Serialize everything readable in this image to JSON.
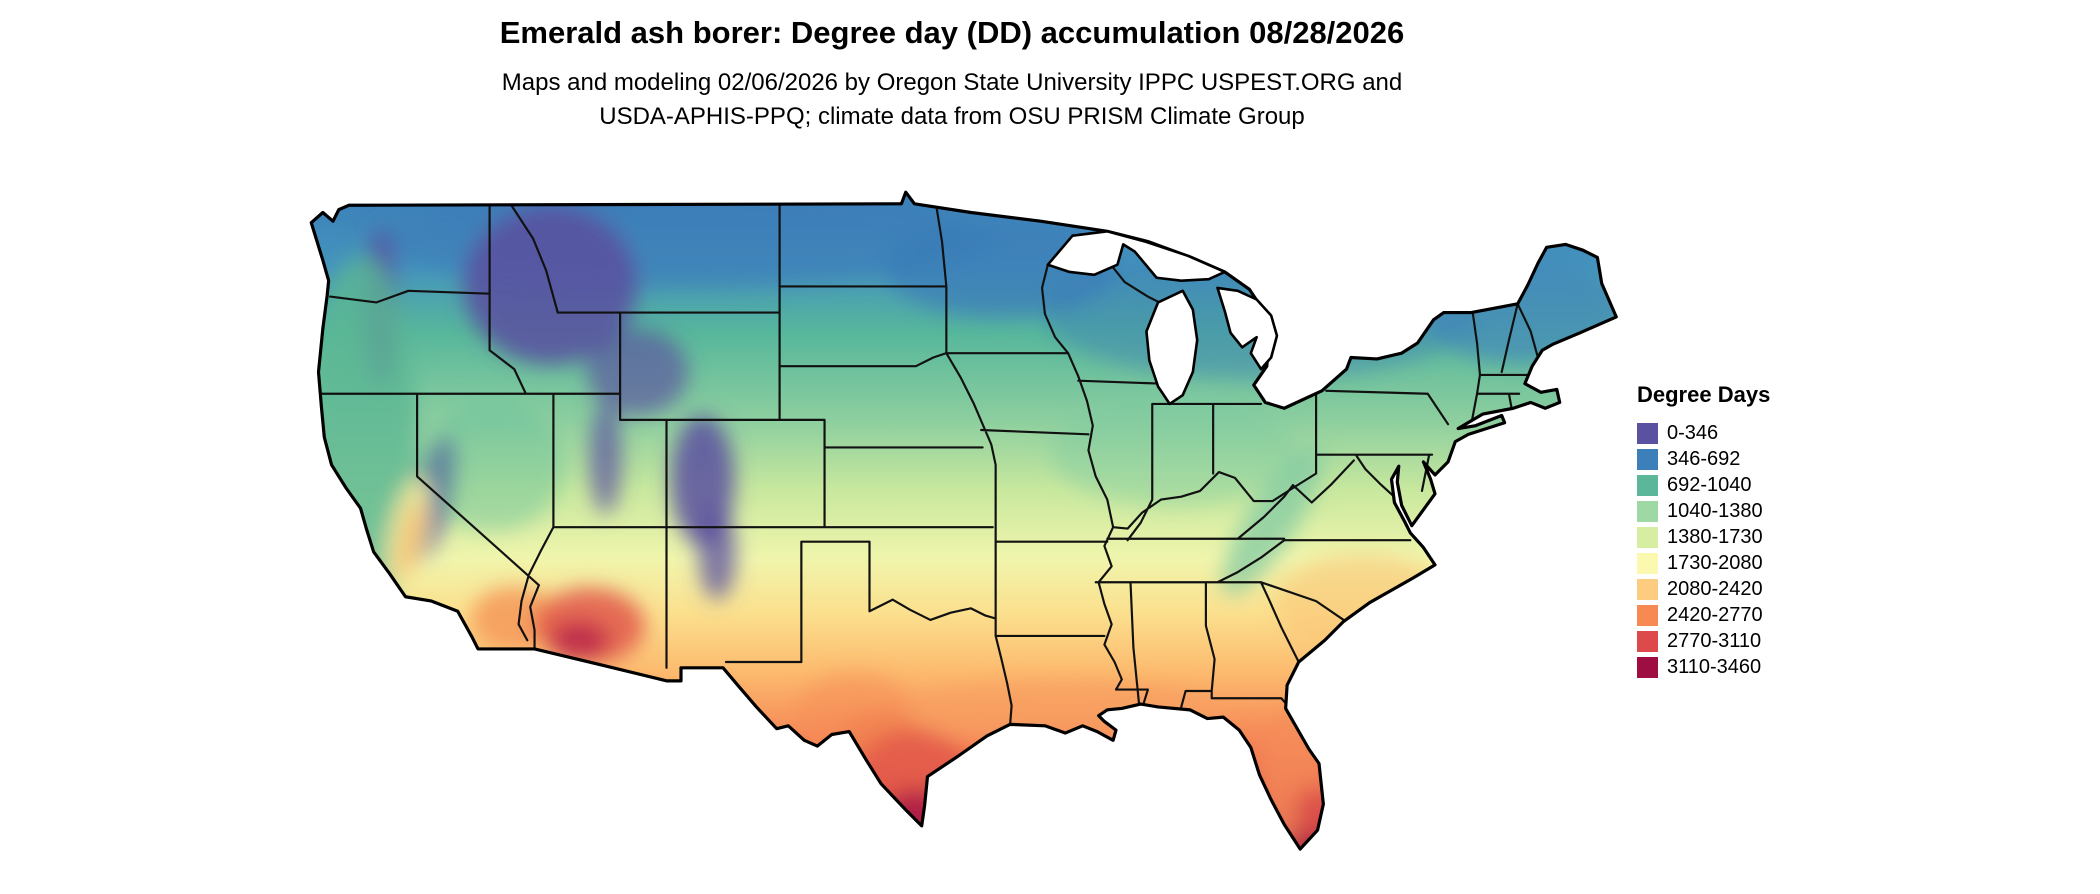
{
  "header": {
    "title": "Emerald ash borer: Degree day (DD) accumulation 08/28/2026",
    "subtitle_line1": "Maps and modeling 02/06/2026 by Oregon State University IPPC USPEST.ORG and",
    "subtitle_line2": "USDA-APHIS-PPQ; climate data from OSU PRISM Climate Group"
  },
  "map": {
    "description": "Contiguous United States raster map colored by accumulated degree days with state boundaries and Great Lakes"
  },
  "legend": {
    "title": "Degree Days",
    "entries": [
      {
        "label": "0-346",
        "color": "#5b51a1"
      },
      {
        "label": "346-692",
        "color": "#3d7fb9"
      },
      {
        "label": "692-1040",
        "color": "#5bb69a"
      },
      {
        "label": "1040-1380",
        "color": "#9ed9a5"
      },
      {
        "label": "1380-1730",
        "color": "#d7eda2"
      },
      {
        "label": "1730-2080",
        "color": "#fbf8b0"
      },
      {
        "label": "2080-2420",
        "color": "#fdcc80"
      },
      {
        "label": "2420-2770",
        "color": "#f78a53"
      },
      {
        "label": "2770-3110",
        "color": "#dd4a4c"
      },
      {
        "label": "3110-3460",
        "color": "#9e0e42"
      }
    ]
  }
}
